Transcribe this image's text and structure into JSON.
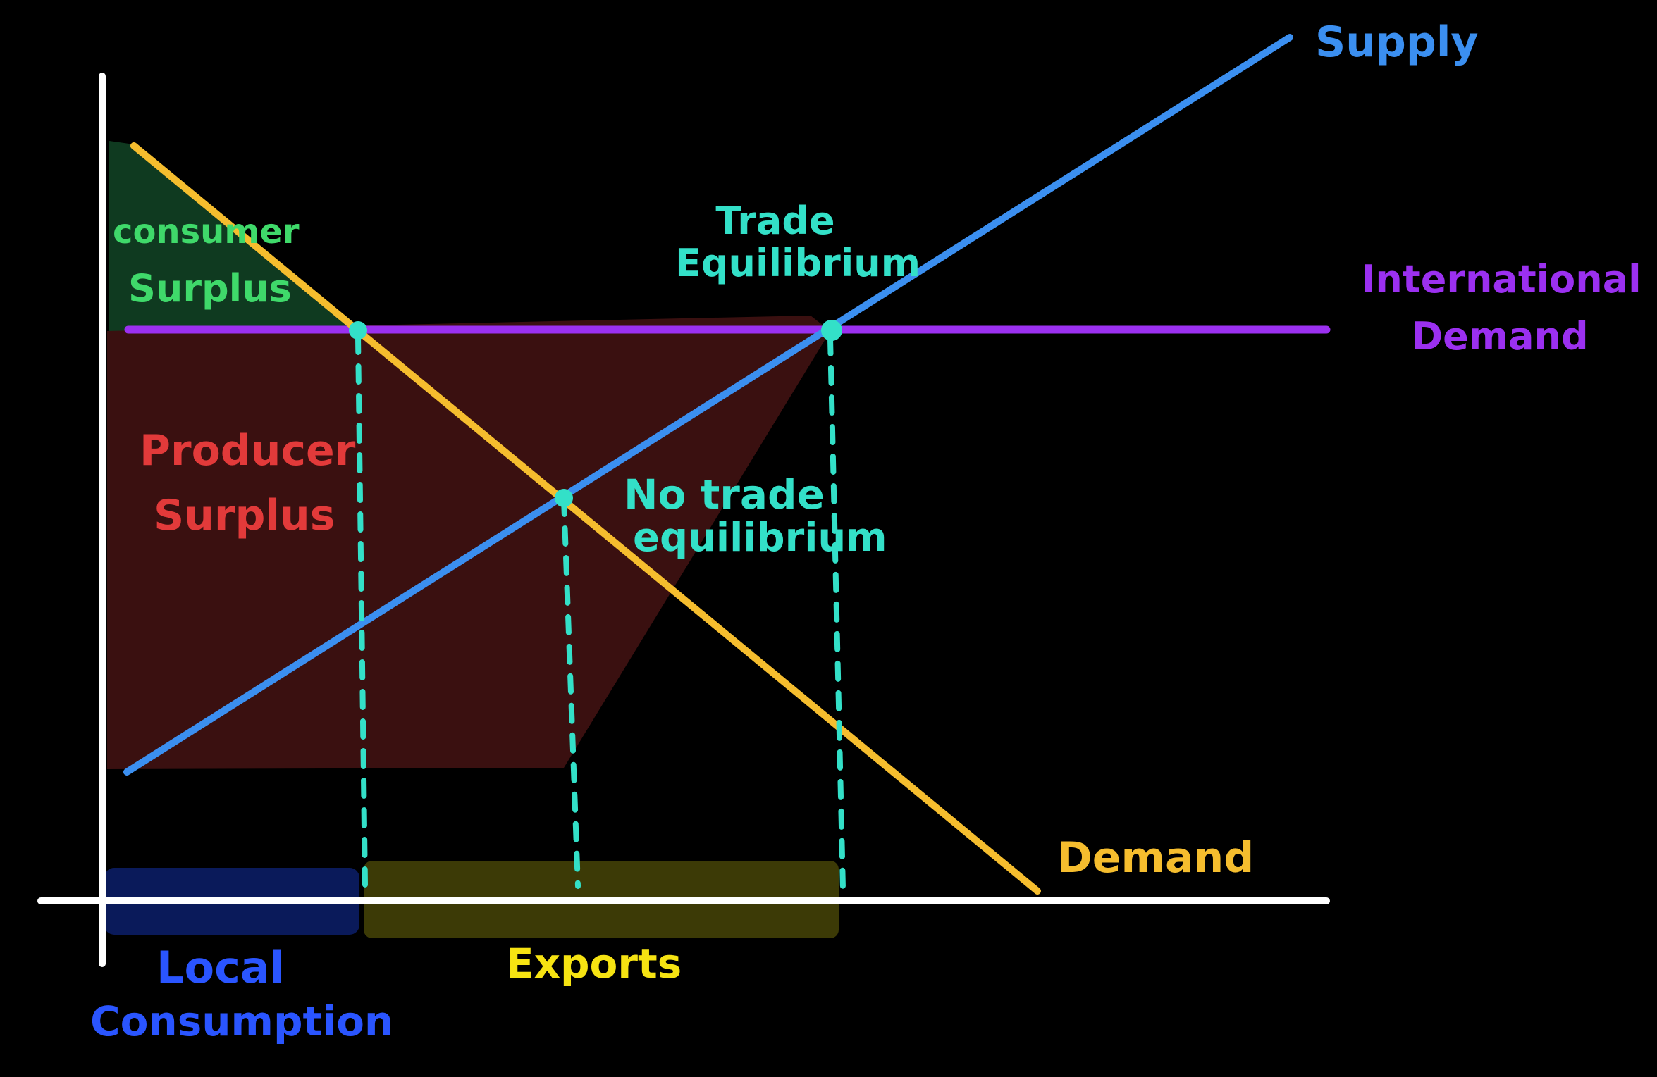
{
  "labels": {
    "supply": "Supply",
    "demand": "Demand",
    "international_demand_line1": "International",
    "international_demand_line2": "Demand",
    "trade_equilibrium_line1": "Trade",
    "trade_equilibrium_line2": "Equilibrium",
    "no_trade_equilibrium_line1": "No trade",
    "no_trade_equilibrium_line2": "equilibrium",
    "consumer_surplus_line1": "consumer",
    "consumer_surplus_line2": "Surplus",
    "producer_surplus_line1": "Producer",
    "producer_surplus_line2": "Surplus",
    "local_consumption_line1": "Local",
    "local_consumption_line2": "Consumption",
    "exports": "Exports"
  },
  "colors": {
    "background": "#000000",
    "axis": "#ffffff",
    "supply": "#3b8ff0",
    "demand": "#f5bd2e",
    "international_demand": "#9b30f0",
    "equilibrium_marker": "#33e0c8",
    "consumer_surplus_fill": "#0f3a20",
    "consumer_surplus_text": "#3fd96a",
    "producer_surplus_fill": "#3a1010",
    "producer_surplus_text": "#e23a3a",
    "local_consumption_fill": "#0a1a5a",
    "local_consumption_text": "#2a55ff",
    "exports_fill": "#3c3a06",
    "exports_text": "#f6e312"
  }
}
